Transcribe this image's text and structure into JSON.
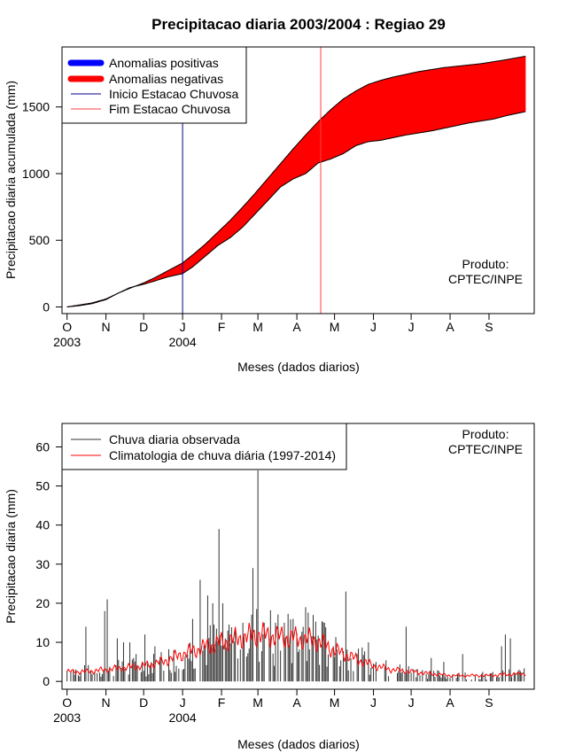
{
  "colors": {
    "positive": "#0000ff",
    "negative": "#ff0000",
    "rain_start": "#00008b",
    "rain_end": "#ff4040",
    "observed": "#333333",
    "climatology": "#ff0000"
  },
  "chart_data": [
    {
      "type": "area",
      "title": "Precipitacao diaria 2003/2004 : Regiao 29",
      "xlabel": "Meses (dados diarios)",
      "ylabel": "Precipitacao diaria acumulada (mm)",
      "x_unit": "days since 2003-10-01",
      "xlim": [
        -4,
        372
      ],
      "ylim": [
        -50,
        1950
      ],
      "y_ticks": [
        0,
        500,
        1000,
        1500
      ],
      "month_ticks": [
        0,
        31,
        61,
        92,
        123,
        152,
        183,
        213,
        244,
        274,
        305,
        336
      ],
      "month_labels": [
        "O",
        "N",
        "D",
        "J",
        "F",
        "M",
        "A",
        "M",
        "J",
        "J",
        "A",
        "S"
      ],
      "year_labels": [
        {
          "day": 0,
          "label": "2003"
        },
        {
          "day": 92,
          "label": "2004"
        }
      ],
      "legend": [
        "Anomalias positivas",
        "Anomalias negativas",
        "Inicio Estacao Chuvosa",
        "Fim Estacao Chuvosa"
      ],
      "legend_position": "top-left",
      "annotation": [
        "Produto:",
        "CPTEC/INPE"
      ],
      "rain_season_start_day": 92,
      "rain_season_end_day": 202,
      "series": [
        {
          "name": "Climatologia acumulada",
          "x": [
            0,
            10,
            20,
            31,
            40,
            50,
            61,
            70,
            80,
            92,
            100,
            110,
            120,
            130,
            140,
            150,
            160,
            170,
            180,
            190,
            200,
            210,
            220,
            230,
            240,
            250,
            260,
            270,
            280,
            290,
            300,
            310,
            320,
            330,
            340,
            350,
            365
          ],
          "values": [
            0,
            15,
            30,
            60,
            100,
            140,
            180,
            220,
            270,
            330,
            390,
            470,
            560,
            650,
            750,
            855,
            965,
            1075,
            1185,
            1290,
            1390,
            1480,
            1560,
            1620,
            1670,
            1700,
            1725,
            1745,
            1765,
            1780,
            1795,
            1805,
            1815,
            1825,
            1840,
            1855,
            1880
          ]
        },
        {
          "name": "Chuva observada acumulada",
          "x": [
            0,
            10,
            20,
            31,
            40,
            50,
            61,
            70,
            80,
            92,
            100,
            110,
            120,
            130,
            140,
            150,
            160,
            170,
            180,
            190,
            200,
            210,
            220,
            230,
            240,
            250,
            260,
            270,
            280,
            290,
            300,
            310,
            320,
            330,
            340,
            350,
            365
          ],
          "values": [
            0,
            10,
            25,
            55,
            100,
            145,
            170,
            195,
            225,
            250,
            300,
            380,
            460,
            520,
            600,
            700,
            800,
            900,
            960,
            1000,
            1080,
            1110,
            1150,
            1210,
            1240,
            1250,
            1270,
            1290,
            1305,
            1320,
            1340,
            1360,
            1380,
            1395,
            1410,
            1435,
            1465
          ]
        }
      ]
    },
    {
      "type": "bar",
      "xlabel": "Meses (dados diarios)",
      "ylabel": "Precipitacao diaria (mm)",
      "x_unit": "days since 2003-10-01",
      "xlim": [
        -4,
        372
      ],
      "ylim": [
        -2,
        66
      ],
      "y_ticks": [
        0,
        10,
        20,
        30,
        40,
        50,
        60
      ],
      "month_ticks": [
        0,
        31,
        61,
        92,
        123,
        152,
        183,
        213,
        244,
        274,
        305,
        336
      ],
      "month_labels": [
        "O",
        "N",
        "D",
        "J",
        "F",
        "M",
        "A",
        "M",
        "J",
        "J",
        "A",
        "S"
      ],
      "year_labels": [
        {
          "day": 0,
          "label": "2003"
        },
        {
          "day": 92,
          "label": "2004"
        }
      ],
      "legend": [
        "Chuva diaria observada",
        "Climatologia de chuva diária (1997-2014)"
      ],
      "legend_position": "top-left",
      "annotation": [
        "Produto:",
        "CPTEC/INPE"
      ],
      "series": [
        {
          "name": "Chuva diaria observada",
          "peaks": [
            {
              "day": 15,
              "value": 14
            },
            {
              "day": 30,
              "value": 18
            },
            {
              "day": 32,
              "value": 21
            },
            {
              "day": 40,
              "value": 11
            },
            {
              "day": 45,
              "value": 10
            },
            {
              "day": 50,
              "value": 10
            },
            {
              "day": 55,
              "value": 7
            },
            {
              "day": 62,
              "value": 12
            },
            {
              "day": 70,
              "value": 9
            },
            {
              "day": 85,
              "value": 8
            },
            {
              "day": 100,
              "value": 16
            },
            {
              "day": 106,
              "value": 26
            },
            {
              "day": 112,
              "value": 22
            },
            {
              "day": 116,
              "value": 20
            },
            {
              "day": 121,
              "value": 39
            },
            {
              "day": 124,
              "value": 20
            },
            {
              "day": 128,
              "value": 13
            },
            {
              "day": 140,
              "value": 15
            },
            {
              "day": 148,
              "value": 29
            },
            {
              "day": 152,
              "value": 54
            },
            {
              "day": 157,
              "value": 15
            },
            {
              "day": 166,
              "value": 15
            },
            {
              "day": 173,
              "value": 15
            },
            {
              "day": 180,
              "value": 16
            },
            {
              "day": 190,
              "value": 19
            },
            {
              "day": 196,
              "value": 17
            },
            {
              "day": 205,
              "value": 15
            },
            {
              "day": 212,
              "value": 9
            },
            {
              "day": 222,
              "value": 23
            },
            {
              "day": 240,
              "value": 10
            },
            {
              "day": 270,
              "value": 14
            },
            {
              "day": 290,
              "value": 6
            },
            {
              "day": 300,
              "value": 5
            },
            {
              "day": 315,
              "value": 7
            },
            {
              "day": 346,
              "value": 9
            },
            {
              "day": 349,
              "value": 12
            },
            {
              "day": 353,
              "value": 11
            },
            {
              "day": 360,
              "value": 3
            }
          ]
        },
        {
          "name": "Climatologia de chuva diária (1997-2014)",
          "x": [
            0,
            15,
            31,
            45,
            61,
            76,
            92,
            107,
            123,
            137,
            152,
            167,
            183,
            198,
            213,
            228,
            244,
            259,
            274,
            289,
            305,
            320,
            336,
            351,
            365
          ],
          "values": [
            2.5,
            2.5,
            3,
            3.5,
            4,
            5,
            7,
            8.5,
            10,
            11,
            12,
            11.5,
            11,
            10.5,
            8,
            6,
            4,
            3,
            2.5,
            2,
            1.5,
            1.5,
            1.5,
            1.8,
            2
          ]
        }
      ]
    }
  ]
}
